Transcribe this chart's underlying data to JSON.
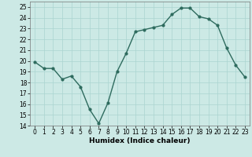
{
  "x": [
    0,
    1,
    2,
    3,
    4,
    5,
    6,
    7,
    8,
    9,
    10,
    11,
    12,
    13,
    14,
    15,
    16,
    17,
    18,
    19,
    20,
    21,
    22,
    23
  ],
  "y": [
    19.9,
    19.3,
    19.3,
    18.3,
    18.6,
    17.6,
    15.5,
    14.2,
    16.1,
    19.0,
    20.7,
    22.7,
    22.9,
    23.1,
    23.3,
    24.3,
    24.9,
    24.9,
    24.1,
    23.9,
    23.3,
    21.2,
    19.6,
    18.5
  ],
  "line_color": "#2e6b5e",
  "marker": "o",
  "marker_size": 2.0,
  "xlabel": "Humidex (Indice chaleur)",
  "xlim": [
    -0.5,
    23.5
  ],
  "ylim": [
    14,
    25.5
  ],
  "yticks": [
    14,
    15,
    16,
    17,
    18,
    19,
    20,
    21,
    22,
    23,
    24,
    25
  ],
  "xticks": [
    0,
    1,
    2,
    3,
    4,
    5,
    6,
    7,
    8,
    9,
    10,
    11,
    12,
    13,
    14,
    15,
    16,
    17,
    18,
    19,
    20,
    21,
    22,
    23
  ],
  "bg_color": "#cce9e5",
  "grid_color": "#aad4d0",
  "tick_fontsize": 5.5,
  "label_fontsize": 6.5,
  "line_width": 1.0
}
